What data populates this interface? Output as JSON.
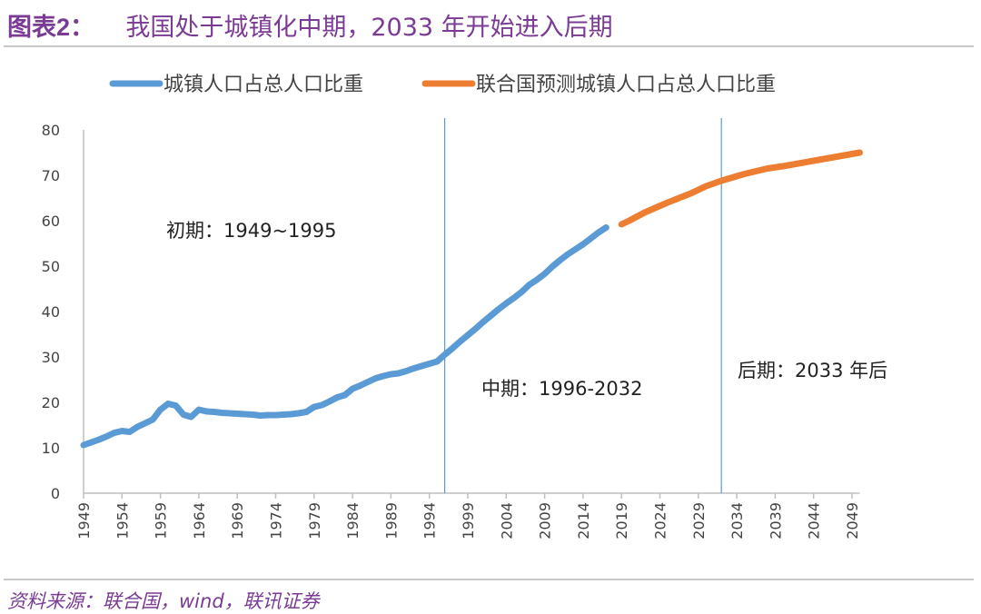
{
  "title": {
    "prefix": "图表2：",
    "text": "我国处于城镇化中期，2033 年开始进入后期"
  },
  "source": "资料来源：联合国，wind，联讯证券",
  "colors": {
    "actual": "#5b9bd5",
    "forecast": "#ed7d31",
    "title": "#7b3b94",
    "divider": "#5b9bd5"
  },
  "chart_data": {
    "type": "line",
    "title": "我国处于城镇化中期，2033 年开始进入后期",
    "xlabel": "",
    "ylabel": "",
    "ylim": [
      0,
      80
    ],
    "xlim": [
      1949,
      2050
    ],
    "yticks": [
      0,
      10,
      20,
      30,
      40,
      50,
      60,
      70,
      80
    ],
    "xticks": [
      1949,
      1954,
      1959,
      1964,
      1969,
      1974,
      1979,
      1984,
      1989,
      1994,
      1999,
      2004,
      2009,
      2014,
      2019,
      2024,
      2029,
      2034,
      2039,
      2044,
      2049
    ],
    "legend_position": "top",
    "series": [
      {
        "name": "城镇人口占总人口比重",
        "color": "#5b9bd5",
        "x": [
          1949,
          1950,
          1951,
          1952,
          1953,
          1954,
          1955,
          1956,
          1957,
          1958,
          1959,
          1960,
          1961,
          1962,
          1963,
          1964,
          1965,
          1966,
          1967,
          1968,
          1969,
          1970,
          1971,
          1972,
          1973,
          1974,
          1975,
          1976,
          1977,
          1978,
          1979,
          1980,
          1981,
          1982,
          1983,
          1984,
          1985,
          1986,
          1987,
          1988,
          1989,
          1990,
          1991,
          1992,
          1993,
          1994,
          1995,
          1996,
          1997,
          1998,
          1999,
          2000,
          2001,
          2002,
          2003,
          2004,
          2005,
          2006,
          2007,
          2008,
          2009,
          2010,
          2011,
          2012,
          2013,
          2014,
          2015,
          2016,
          2017
        ],
        "y": [
          10.6,
          11.2,
          11.8,
          12.5,
          13.3,
          13.7,
          13.5,
          14.6,
          15.4,
          16.2,
          18.4,
          19.7,
          19.3,
          17.3,
          16.8,
          18.4,
          18.0,
          17.9,
          17.7,
          17.6,
          17.5,
          17.4,
          17.3,
          17.1,
          17.2,
          17.2,
          17.3,
          17.4,
          17.6,
          17.9,
          19.0,
          19.4,
          20.2,
          21.1,
          21.6,
          23.0,
          23.7,
          24.5,
          25.3,
          25.8,
          26.2,
          26.4,
          26.9,
          27.5,
          28.0,
          28.5,
          29.0,
          30.5,
          31.9,
          33.4,
          34.8,
          36.2,
          37.7,
          39.1,
          40.5,
          41.8,
          43.0,
          44.3,
          45.9,
          47.0,
          48.3,
          49.9,
          51.3,
          52.6,
          53.7,
          54.8,
          56.1,
          57.4,
          58.5
        ]
      },
      {
        "name": "联合国预测城镇人口占总人口比重",
        "color": "#ed7d31",
        "x": [
          2019,
          2020,
          2022,
          2025,
          2028,
          2030,
          2032,
          2035,
          2038,
          2040,
          2045,
          2050
        ],
        "y": [
          59.2,
          60.0,
          61.8,
          64.0,
          66.0,
          67.6,
          68.8,
          70.3,
          71.5,
          72.0,
          73.5,
          75.0
        ]
      }
    ],
    "dividers": [
      1996,
      2032
    ],
    "annotations": [
      "初期：1949~1995",
      "中期：1996-2032",
      "后期：2033 年后"
    ]
  }
}
